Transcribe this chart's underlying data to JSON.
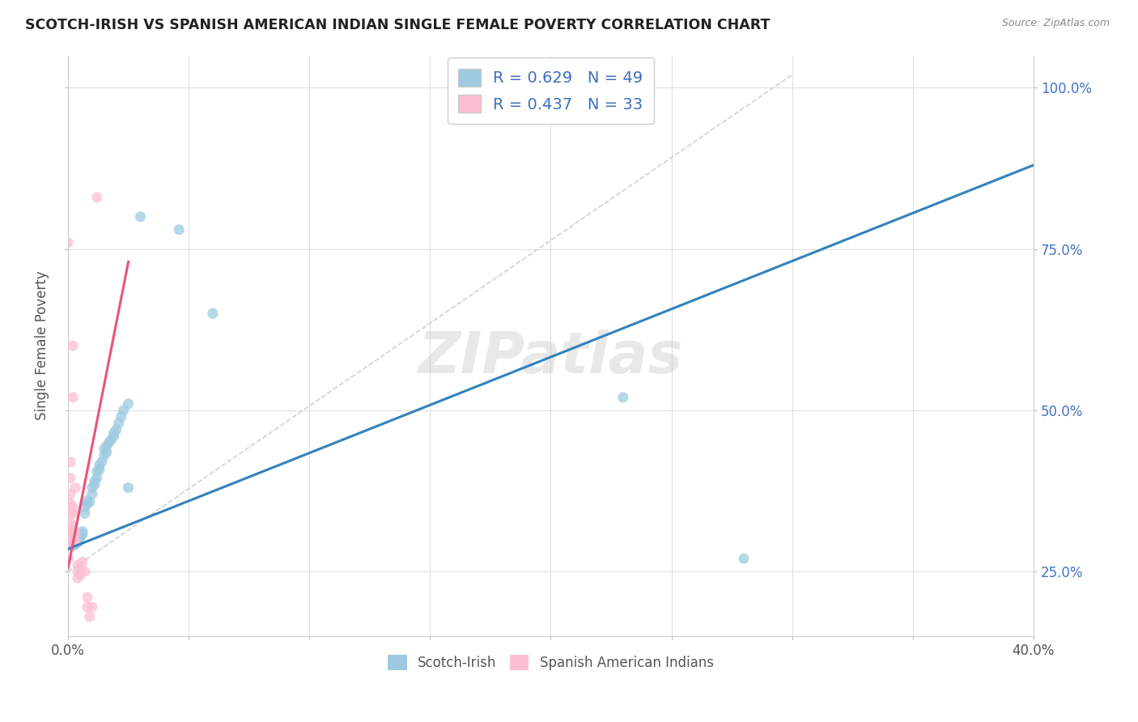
{
  "title": "SCOTCH-IRISH VS SPANISH AMERICAN INDIAN SINGLE FEMALE POVERTY CORRELATION CHART",
  "source": "Source: ZipAtlas.com",
  "ylabel": "Single Female Poverty",
  "legend_label_blue": "Scotch-Irish",
  "legend_label_pink": "Spanish American Indians",
  "R_blue": 0.629,
  "N_blue": 49,
  "R_pink": 0.437,
  "N_pink": 33,
  "blue_color": "#9ecae1",
  "pink_color": "#fcbfd2",
  "blue_line_color": "#3182bd",
  "pink_line_color": "#e8547a",
  "diagonal_color": "#cccccc",
  "background_color": "#ffffff",
  "grid_color": "#e0e0e0",
  "blue_scatter": [
    [
      0.001,
      0.29
    ],
    [
      0.001,
      0.295
    ],
    [
      0.002,
      0.29
    ],
    [
      0.002,
      0.295
    ],
    [
      0.002,
      0.3
    ],
    [
      0.002,
      0.295
    ],
    [
      0.003,
      0.292
    ],
    [
      0.003,
      0.298
    ],
    [
      0.003,
      0.296
    ],
    [
      0.004,
      0.295
    ],
    [
      0.004,
      0.3
    ],
    [
      0.004,
      0.296
    ],
    [
      0.005,
      0.305
    ],
    [
      0.005,
      0.302
    ],
    [
      0.006,
      0.308
    ],
    [
      0.006,
      0.312
    ],
    [
      0.007,
      0.34
    ],
    [
      0.007,
      0.35
    ],
    [
      0.008,
      0.355
    ],
    [
      0.008,
      0.36
    ],
    [
      0.009,
      0.358
    ],
    [
      0.01,
      0.37
    ],
    [
      0.01,
      0.38
    ],
    [
      0.011,
      0.385
    ],
    [
      0.011,
      0.39
    ],
    [
      0.012,
      0.395
    ],
    [
      0.012,
      0.405
    ],
    [
      0.013,
      0.408
    ],
    [
      0.013,
      0.415
    ],
    [
      0.014,
      0.42
    ],
    [
      0.015,
      0.43
    ],
    [
      0.015,
      0.44
    ],
    [
      0.016,
      0.435
    ],
    [
      0.016,
      0.445
    ],
    [
      0.017,
      0.45
    ],
    [
      0.018,
      0.455
    ],
    [
      0.019,
      0.46
    ],
    [
      0.019,
      0.465
    ],
    [
      0.02,
      0.47
    ],
    [
      0.021,
      0.48
    ],
    [
      0.022,
      0.49
    ],
    [
      0.023,
      0.5
    ],
    [
      0.025,
      0.51
    ],
    [
      0.025,
      0.38
    ],
    [
      0.03,
      0.8
    ],
    [
      0.046,
      0.78
    ],
    [
      0.06,
      0.65
    ],
    [
      0.23,
      0.52
    ],
    [
      0.28,
      0.27
    ]
  ],
  "pink_scatter": [
    [
      0.0,
      0.27
    ],
    [
      0.0,
      0.295
    ],
    [
      0.001,
      0.295
    ],
    [
      0.001,
      0.31
    ],
    [
      0.001,
      0.325
    ],
    [
      0.001,
      0.34
    ],
    [
      0.001,
      0.355
    ],
    [
      0.001,
      0.37
    ],
    [
      0.001,
      0.395
    ],
    [
      0.001,
      0.42
    ],
    [
      0.002,
      0.295
    ],
    [
      0.002,
      0.31
    ],
    [
      0.002,
      0.32
    ],
    [
      0.002,
      0.34
    ],
    [
      0.002,
      0.35
    ],
    [
      0.002,
      0.52
    ],
    [
      0.002,
      0.6
    ],
    [
      0.003,
      0.3
    ],
    [
      0.003,
      0.31
    ],
    [
      0.003,
      0.38
    ],
    [
      0.004,
      0.26
    ],
    [
      0.004,
      0.25
    ],
    [
      0.004,
      0.24
    ],
    [
      0.005,
      0.255
    ],
    [
      0.005,
      0.245
    ],
    [
      0.006,
      0.265
    ],
    [
      0.007,
      0.25
    ],
    [
      0.008,
      0.21
    ],
    [
      0.008,
      0.195
    ],
    [
      0.009,
      0.18
    ],
    [
      0.01,
      0.195
    ],
    [
      0.0,
      0.76
    ],
    [
      0.012,
      0.83
    ]
  ],
  "xlim": [
    0.0,
    0.4
  ],
  "ylim": [
    0.15,
    1.05
  ],
  "y_ticks": [
    0.25,
    0.5,
    0.75,
    1.0
  ],
  "x_ticks": [
    0.0,
    0.05,
    0.1,
    0.15,
    0.2,
    0.25,
    0.3,
    0.35,
    0.4
  ],
  "blue_line_x": [
    0.0,
    0.4
  ],
  "blue_line_y": [
    0.285,
    0.88
  ],
  "pink_line_x": [
    0.0,
    0.025
  ],
  "pink_line_y": [
    0.255,
    0.73
  ]
}
